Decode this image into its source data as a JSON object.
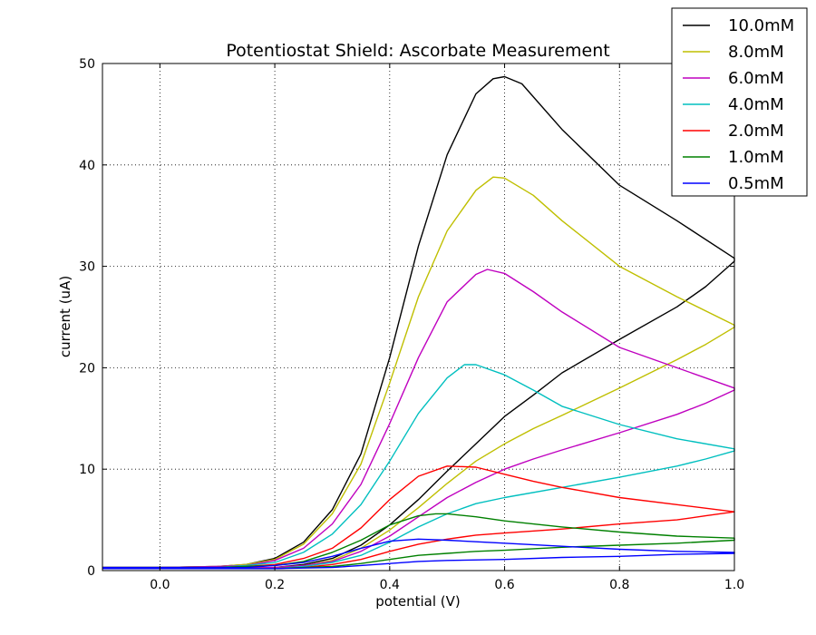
{
  "chart_data": {
    "type": "line",
    "title": "Potentiostat Shield: Ascorbate Measurement",
    "xlabel": "potential (V)",
    "ylabel": "current (uA)",
    "xlim": [
      -0.1,
      1.0
    ],
    "ylim": [
      0,
      50
    ],
    "xticks": [
      0.0,
      0.2,
      0.4,
      0.6,
      0.8,
      1.0
    ],
    "xtick_labels": [
      "0.0",
      "0.2",
      "0.4",
      "0.6",
      "0.8",
      "1.0"
    ],
    "yticks": [
      0,
      10,
      20,
      30,
      40,
      50
    ],
    "ytick_labels": [
      "0",
      "10",
      "20",
      "30",
      "40",
      "50"
    ],
    "grid": true,
    "legend_position": "top-right",
    "series": [
      {
        "name": "10.0mM",
        "color": "#000000",
        "forward": [
          [
            -0.1,
            0.3
          ],
          [
            0.0,
            0.3
          ],
          [
            0.1,
            0.4
          ],
          [
            0.15,
            0.6
          ],
          [
            0.2,
            1.2
          ],
          [
            0.25,
            2.8
          ],
          [
            0.3,
            6.0
          ],
          [
            0.35,
            11.5
          ],
          [
            0.4,
            21.0
          ],
          [
            0.45,
            32.0
          ],
          [
            0.5,
            41.0
          ],
          [
            0.55,
            47.0
          ],
          [
            0.58,
            48.5
          ],
          [
            0.6,
            48.7
          ],
          [
            0.63,
            48.0
          ],
          [
            0.7,
            43.5
          ],
          [
            0.8,
            38.0
          ],
          [
            0.9,
            34.5
          ],
          [
            1.0,
            30.8
          ]
        ],
        "reverse": [
          [
            1.0,
            30.5
          ],
          [
            0.95,
            28.0
          ],
          [
            0.9,
            26.0
          ],
          [
            0.8,
            22.8
          ],
          [
            0.7,
            19.5
          ],
          [
            0.65,
            17.3
          ],
          [
            0.6,
            15.2
          ],
          [
            0.55,
            12.5
          ],
          [
            0.5,
            9.8
          ],
          [
            0.45,
            7.0
          ],
          [
            0.4,
            4.5
          ],
          [
            0.35,
            2.5
          ],
          [
            0.3,
            1.2
          ],
          [
            0.25,
            0.6
          ],
          [
            0.2,
            0.3
          ],
          [
            0.1,
            0.2
          ],
          [
            0.0,
            0.2
          ],
          [
            -0.1,
            0.2
          ]
        ]
      },
      {
        "name": "8.0mM",
        "color": "#bfbf00",
        "forward": [
          [
            -0.1,
            0.3
          ],
          [
            0.0,
            0.3
          ],
          [
            0.1,
            0.4
          ],
          [
            0.15,
            0.6
          ],
          [
            0.2,
            1.1
          ],
          [
            0.25,
            2.6
          ],
          [
            0.3,
            5.6
          ],
          [
            0.35,
            10.5
          ],
          [
            0.4,
            18.5
          ],
          [
            0.45,
            27.0
          ],
          [
            0.5,
            33.5
          ],
          [
            0.55,
            37.5
          ],
          [
            0.58,
            38.8
          ],
          [
            0.6,
            38.7
          ],
          [
            0.65,
            37.0
          ],
          [
            0.7,
            34.5
          ],
          [
            0.8,
            30.0
          ],
          [
            0.9,
            27.0
          ],
          [
            1.0,
            24.2
          ]
        ],
        "reverse": [
          [
            1.0,
            24.0
          ],
          [
            0.95,
            22.3
          ],
          [
            0.9,
            20.8
          ],
          [
            0.8,
            18.0
          ],
          [
            0.7,
            15.3
          ],
          [
            0.65,
            14.0
          ],
          [
            0.6,
            12.5
          ],
          [
            0.55,
            10.8
          ],
          [
            0.5,
            8.6
          ],
          [
            0.45,
            6.2
          ],
          [
            0.4,
            4.0
          ],
          [
            0.35,
            2.2
          ],
          [
            0.3,
            1.0
          ],
          [
            0.25,
            0.5
          ],
          [
            0.2,
            0.3
          ],
          [
            0.1,
            0.2
          ],
          [
            0.0,
            0.2
          ],
          [
            -0.1,
            0.2
          ]
        ]
      },
      {
        "name": "6.0mM",
        "color": "#bf00bf",
        "forward": [
          [
            -0.1,
            0.3
          ],
          [
            0.0,
            0.3
          ],
          [
            0.1,
            0.4
          ],
          [
            0.15,
            0.5
          ],
          [
            0.2,
            1.0
          ],
          [
            0.25,
            2.2
          ],
          [
            0.3,
            4.6
          ],
          [
            0.35,
            8.5
          ],
          [
            0.4,
            14.5
          ],
          [
            0.45,
            21.0
          ],
          [
            0.5,
            26.5
          ],
          [
            0.55,
            29.2
          ],
          [
            0.57,
            29.7
          ],
          [
            0.6,
            29.3
          ],
          [
            0.65,
            27.5
          ],
          [
            0.7,
            25.5
          ],
          [
            0.8,
            22.0
          ],
          [
            0.9,
            20.0
          ],
          [
            1.0,
            18.0
          ]
        ],
        "reverse": [
          [
            1.0,
            17.8
          ],
          [
            0.95,
            16.5
          ],
          [
            0.9,
            15.4
          ],
          [
            0.8,
            13.6
          ],
          [
            0.7,
            11.9
          ],
          [
            0.65,
            11.0
          ],
          [
            0.6,
            10.0
          ],
          [
            0.55,
            8.7
          ],
          [
            0.5,
            7.2
          ],
          [
            0.45,
            5.3
          ],
          [
            0.4,
            3.4
          ],
          [
            0.35,
            1.9
          ],
          [
            0.3,
            0.9
          ],
          [
            0.25,
            0.5
          ],
          [
            0.2,
            0.3
          ],
          [
            0.1,
            0.2
          ],
          [
            0.0,
            0.2
          ],
          [
            -0.1,
            0.2
          ]
        ]
      },
      {
        "name": "4.0mM",
        "color": "#00bfbf",
        "forward": [
          [
            -0.1,
            0.3
          ],
          [
            0.0,
            0.3
          ],
          [
            0.1,
            0.3
          ],
          [
            0.15,
            0.5
          ],
          [
            0.2,
            0.8
          ],
          [
            0.25,
            1.8
          ],
          [
            0.3,
            3.6
          ],
          [
            0.35,
            6.5
          ],
          [
            0.4,
            10.8
          ],
          [
            0.45,
            15.5
          ],
          [
            0.5,
            19.0
          ],
          [
            0.53,
            20.3
          ],
          [
            0.55,
            20.3
          ],
          [
            0.6,
            19.3
          ],
          [
            0.65,
            17.8
          ],
          [
            0.7,
            16.2
          ],
          [
            0.8,
            14.4
          ],
          [
            0.9,
            13.0
          ],
          [
            1.0,
            12.0
          ]
        ],
        "reverse": [
          [
            1.0,
            11.8
          ],
          [
            0.95,
            11.0
          ],
          [
            0.9,
            10.3
          ],
          [
            0.8,
            9.2
          ],
          [
            0.7,
            8.2
          ],
          [
            0.6,
            7.2
          ],
          [
            0.55,
            6.6
          ],
          [
            0.5,
            5.6
          ],
          [
            0.45,
            4.3
          ],
          [
            0.4,
            2.8
          ],
          [
            0.35,
            1.5
          ],
          [
            0.3,
            0.8
          ],
          [
            0.25,
            0.4
          ],
          [
            0.2,
            0.2
          ],
          [
            0.1,
            0.2
          ],
          [
            0.0,
            0.2
          ],
          [
            -0.1,
            0.2
          ]
        ]
      },
      {
        "name": "2.0mM",
        "color": "#ff0000",
        "forward": [
          [
            -0.1,
            0.3
          ],
          [
            0.0,
            0.3
          ],
          [
            0.1,
            0.3
          ],
          [
            0.15,
            0.4
          ],
          [
            0.2,
            0.6
          ],
          [
            0.25,
            1.2
          ],
          [
            0.3,
            2.2
          ],
          [
            0.35,
            4.2
          ],
          [
            0.4,
            7.0
          ],
          [
            0.45,
            9.3
          ],
          [
            0.5,
            10.3
          ],
          [
            0.55,
            10.2
          ],
          [
            0.6,
            9.5
          ],
          [
            0.65,
            8.8
          ],
          [
            0.7,
            8.2
          ],
          [
            0.8,
            7.2
          ],
          [
            0.9,
            6.5
          ],
          [
            1.0,
            5.8
          ]
        ],
        "reverse": [
          [
            1.0,
            5.8
          ],
          [
            0.95,
            5.4
          ],
          [
            0.9,
            5.0
          ],
          [
            0.8,
            4.6
          ],
          [
            0.7,
            4.1
          ],
          [
            0.6,
            3.7
          ],
          [
            0.55,
            3.5
          ],
          [
            0.5,
            3.1
          ],
          [
            0.45,
            2.6
          ],
          [
            0.4,
            1.9
          ],
          [
            0.35,
            1.1
          ],
          [
            0.3,
            0.6
          ],
          [
            0.25,
            0.3
          ],
          [
            0.2,
            0.2
          ],
          [
            0.1,
            0.2
          ],
          [
            0.0,
            0.2
          ],
          [
            -0.1,
            0.2
          ]
        ]
      },
      {
        "name": "1.0mM",
        "color": "#008000",
        "forward": [
          [
            -0.1,
            0.3
          ],
          [
            0.0,
            0.3
          ],
          [
            0.1,
            0.3
          ],
          [
            0.15,
            0.4
          ],
          [
            0.2,
            0.5
          ],
          [
            0.25,
            0.9
          ],
          [
            0.3,
            1.8
          ],
          [
            0.35,
            3.0
          ],
          [
            0.4,
            4.5
          ],
          [
            0.45,
            5.4
          ],
          [
            0.48,
            5.6
          ],
          [
            0.5,
            5.6
          ],
          [
            0.55,
            5.3
          ],
          [
            0.6,
            4.9
          ],
          [
            0.7,
            4.3
          ],
          [
            0.8,
            3.8
          ],
          [
            0.9,
            3.4
          ],
          [
            1.0,
            3.2
          ]
        ],
        "reverse": [
          [
            1.0,
            3.0
          ],
          [
            0.9,
            2.7
          ],
          [
            0.8,
            2.5
          ],
          [
            0.7,
            2.3
          ],
          [
            0.6,
            2.0
          ],
          [
            0.55,
            1.9
          ],
          [
            0.5,
            1.7
          ],
          [
            0.45,
            1.5
          ],
          [
            0.4,
            1.1
          ],
          [
            0.35,
            0.7
          ],
          [
            0.3,
            0.4
          ],
          [
            0.25,
            0.3
          ],
          [
            0.2,
            0.2
          ],
          [
            0.1,
            0.2
          ],
          [
            0.0,
            0.2
          ],
          [
            -0.1,
            0.2
          ]
        ]
      },
      {
        "name": "0.5mM",
        "color": "#0000ff",
        "forward": [
          [
            -0.1,
            0.3
          ],
          [
            0.0,
            0.3
          ],
          [
            0.1,
            0.3
          ],
          [
            0.15,
            0.3
          ],
          [
            0.2,
            0.5
          ],
          [
            0.25,
            0.8
          ],
          [
            0.3,
            1.4
          ],
          [
            0.35,
            2.2
          ],
          [
            0.4,
            2.9
          ],
          [
            0.45,
            3.1
          ],
          [
            0.5,
            3.0
          ],
          [
            0.6,
            2.7
          ],
          [
            0.7,
            2.4
          ],
          [
            0.8,
            2.1
          ],
          [
            0.9,
            1.9
          ],
          [
            1.0,
            1.8
          ]
        ],
        "reverse": [
          [
            1.0,
            1.7
          ],
          [
            0.9,
            1.6
          ],
          [
            0.8,
            1.4
          ],
          [
            0.7,
            1.3
          ],
          [
            0.6,
            1.1
          ],
          [
            0.5,
            1.0
          ],
          [
            0.45,
            0.9
          ],
          [
            0.4,
            0.7
          ],
          [
            0.35,
            0.5
          ],
          [
            0.3,
            0.3
          ],
          [
            0.2,
            0.2
          ],
          [
            0.1,
            0.2
          ],
          [
            0.0,
            0.2
          ],
          [
            -0.1,
            0.2
          ]
        ]
      }
    ]
  }
}
